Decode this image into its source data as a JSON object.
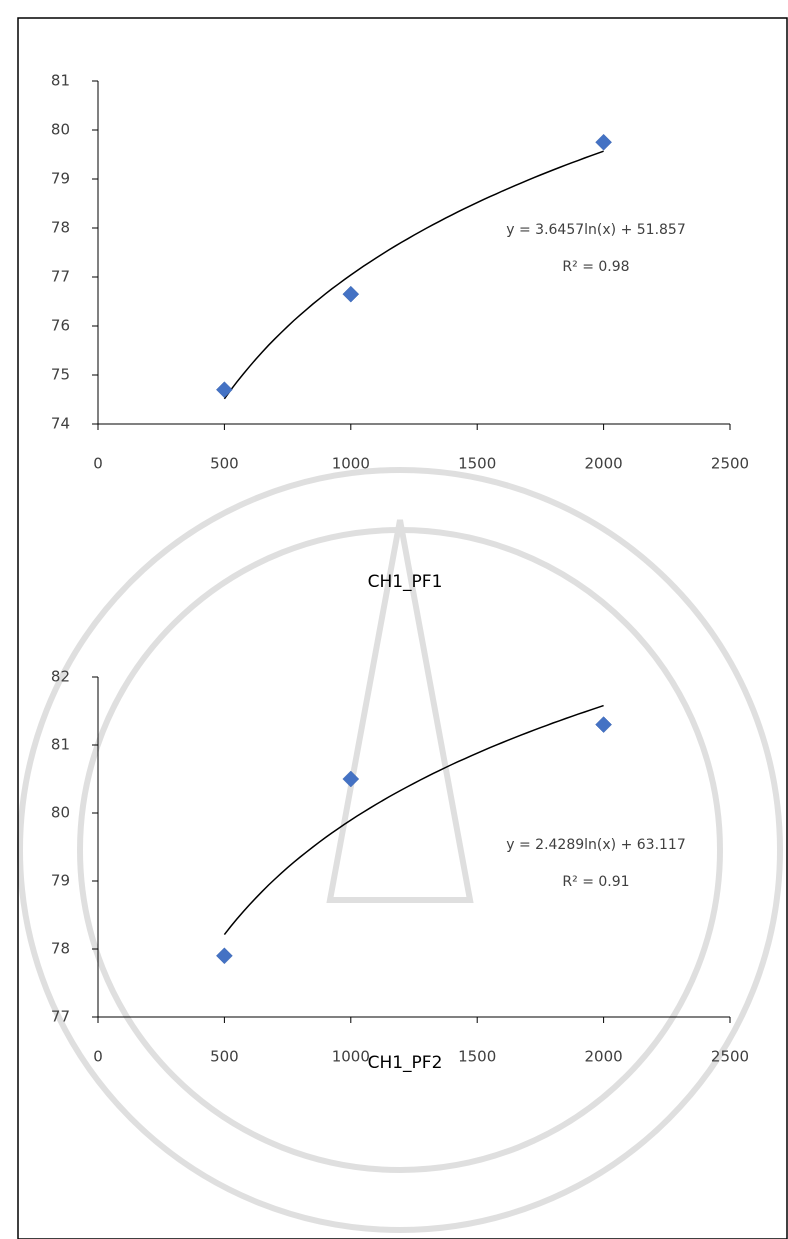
{
  "chart_data": [
    {
      "type": "scatter",
      "title": "CH1_PF1",
      "x": [
        500,
        1000,
        2000
      ],
      "values": [
        74.7,
        76.65,
        79.75
      ],
      "color": "#4472c4",
      "xlim": [
        0,
        2500
      ],
      "xticks": [
        0,
        500,
        1000,
        1500,
        2000,
        2500
      ],
      "ylim": [
        74,
        81
      ],
      "yticks": [
        74,
        75,
        76,
        77,
        78,
        79,
        80,
        81
      ],
      "trendline": {
        "type": "log",
        "coefficients": [
          3.6457,
          51.857
        ],
        "label": "y = 3.6457ln(x) + 51.857",
        "r2": 0.98,
        "r2_label": "R² = 0.98"
      }
    },
    {
      "type": "scatter",
      "title": "CH1_PF2",
      "x": [
        500,
        1000,
        2000
      ],
      "values": [
        77.9,
        80.5,
        81.3
      ],
      "color": "#4472c4",
      "xlim": [
        0,
        2500
      ],
      "xticks": [
        0,
        500,
        1000,
        1500,
        2000,
        2500
      ],
      "ylim": [
        77,
        82
      ],
      "yticks": [
        77,
        78,
        79,
        80,
        81,
        82
      ],
      "trendline": {
        "type": "log",
        "coefficients": [
          2.4289,
          63.117
        ],
        "label": "y = 2.4289ln(x) + 63.117",
        "r2": 0.91,
        "r2_label": "R² = 0.91"
      }
    }
  ]
}
